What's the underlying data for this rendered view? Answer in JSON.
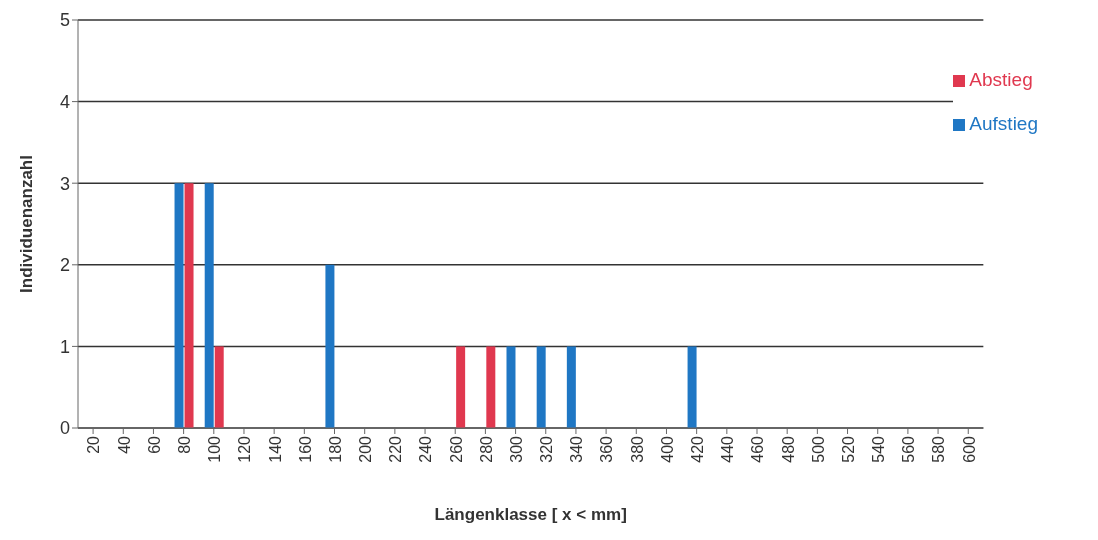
{
  "chart_data": {
    "type": "bar",
    "xlabel": "Längenklasse [ x < mm]",
    "ylabel": "Individuenanzahl",
    "categories": [
      "20",
      "40",
      "60",
      "80",
      "100",
      "120",
      "140",
      "160",
      "180",
      "200",
      "220",
      "240",
      "260",
      "280",
      "300",
      "320",
      "340",
      "360",
      "380",
      "400",
      "420",
      "440",
      "460",
      "480",
      "500",
      "520",
      "540",
      "560",
      "580",
      "600"
    ],
    "series": [
      {
        "name": "Aufstieg",
        "color": "#1f77c4",
        "values": [
          0,
          0,
          0,
          3,
          3,
          0,
          0,
          0,
          2,
          0,
          0,
          0,
          0,
          0,
          1,
          1,
          1,
          0,
          0,
          0,
          1,
          0,
          0,
          0,
          0,
          0,
          0,
          0,
          0,
          0
        ]
      },
      {
        "name": "Abstieg",
        "color": "#e0384f",
        "values": [
          0,
          0,
          0,
          3,
          1,
          0,
          0,
          0,
          0,
          0,
          0,
          0,
          1,
          1,
          0,
          0,
          0,
          0,
          0,
          0,
          0,
          0,
          0,
          0,
          0,
          0,
          0,
          0,
          0,
          0
        ]
      }
    ],
    "ylim": [
      0,
      5
    ],
    "yticks": [
      0,
      1,
      2,
      3,
      4,
      5
    ],
    "grid": "y",
    "legend": "top right"
  }
}
